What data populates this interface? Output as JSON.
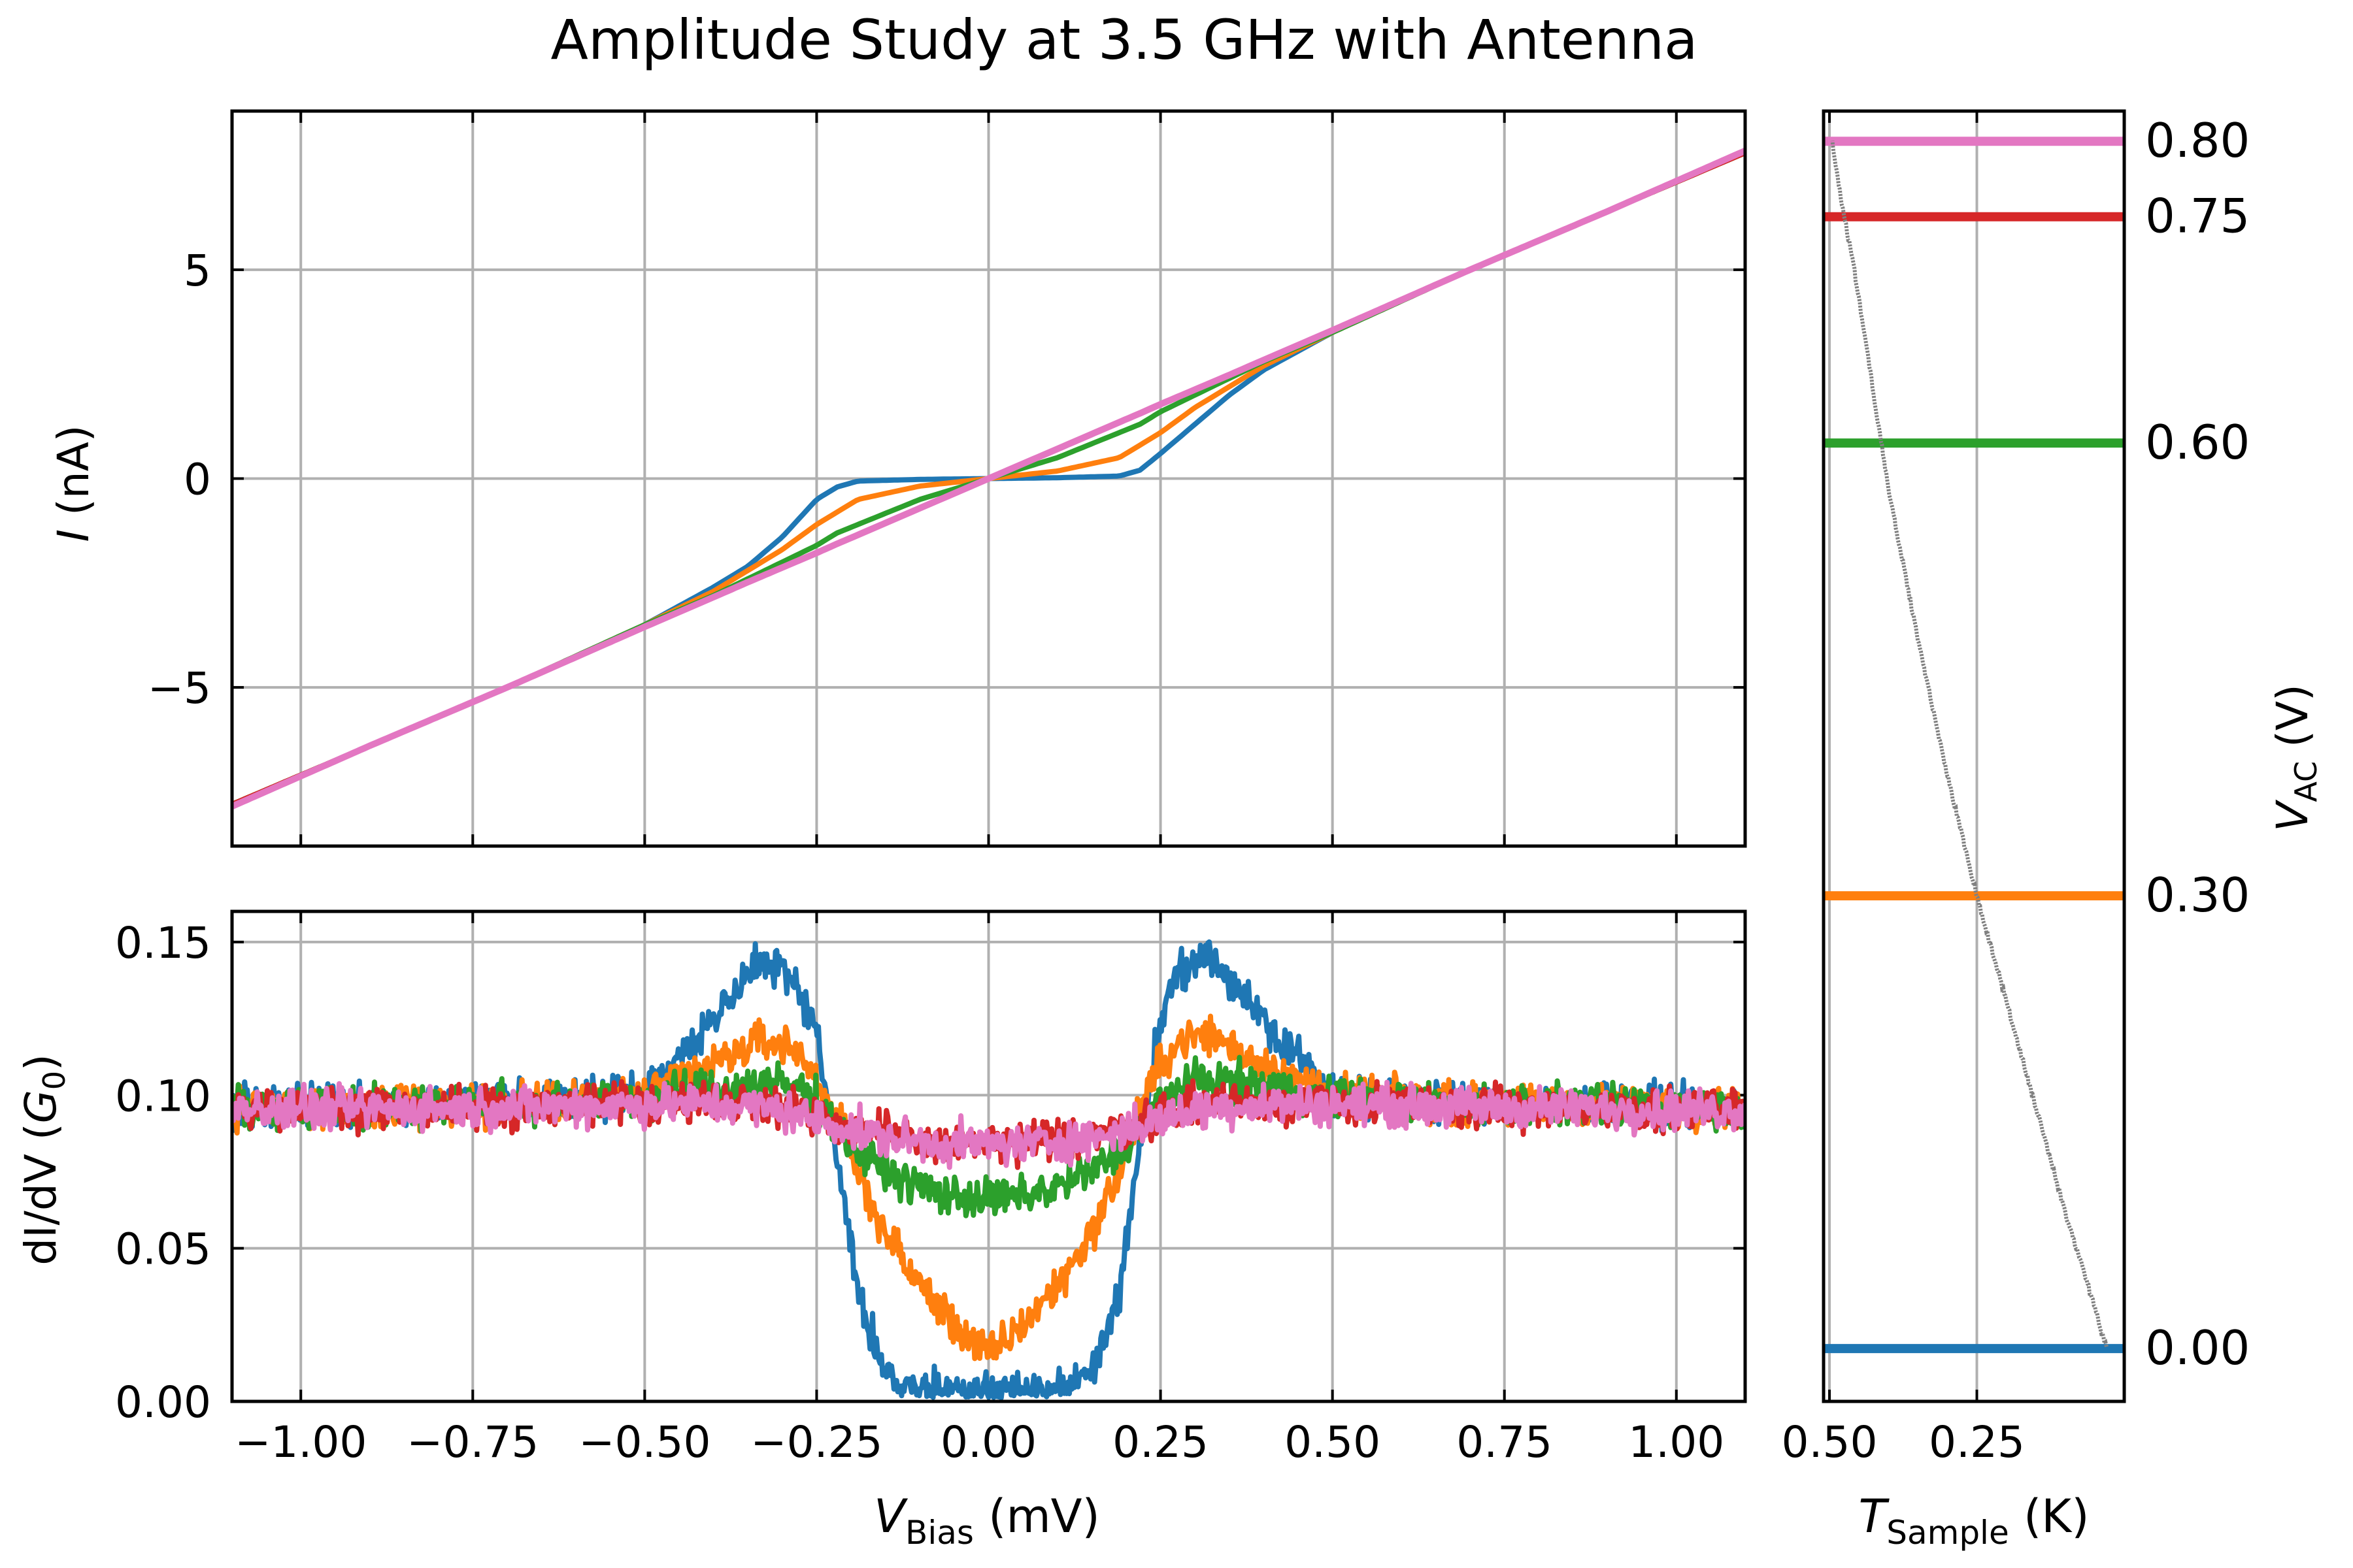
{
  "title": "Amplitude Study at 3.5 GHz with Antenna",
  "colors": {
    "series": [
      "#1f77b4",
      "#ff7f0e",
      "#2ca02c",
      "#d62728",
      "#e377c2"
    ],
    "grid": "#b0b0b0",
    "temperature": "#808080"
  },
  "chart_data": [
    {
      "id": "iv",
      "type": "line",
      "ylabel_symbol": "I",
      "ylabel_unit": "(nA)",
      "xlim": [
        -1.1,
        1.1
      ],
      "ylim": [
        -8.8,
        8.8
      ],
      "x_ticks": [
        -1.0,
        -0.75,
        -0.5,
        -0.25,
        0.0,
        0.25,
        0.5,
        0.75,
        1.0
      ],
      "y_ticks": [
        -5,
        0,
        5
      ],
      "y_tick_labels": [
        "−5",
        "0",
        "5"
      ],
      "grid": true,
      "normal_state_slope_nA_per_mV": 7.1,
      "gap_mV": 0.19,
      "series_amplitudes_V": [
        0.0,
        0.3,
        0.6,
        0.75,
        0.8
      ],
      "series_x": [
        -1.1,
        -0.9,
        -0.7,
        -0.5,
        -0.4,
        -0.35,
        -0.3,
        -0.25,
        -0.22,
        -0.19,
        -0.1,
        0.0,
        0.1,
        0.19,
        0.22,
        0.25,
        0.3,
        0.35,
        0.4,
        0.5,
        0.7,
        0.9,
        1.1
      ],
      "series": [
        {
          "y": [
            -7.8,
            -6.4,
            -5.0,
            -3.5,
            -2.6,
            -2.1,
            -1.4,
            -0.5,
            -0.2,
            -0.06,
            -0.02,
            0.0,
            0.02,
            0.06,
            0.2,
            0.6,
            1.3,
            2.0,
            2.6,
            3.5,
            5.0,
            6.4,
            7.8
          ]
        },
        {
          "y": [
            -7.8,
            -6.4,
            -5.0,
            -3.5,
            -2.7,
            -2.2,
            -1.7,
            -1.1,
            -0.8,
            -0.5,
            -0.18,
            0.0,
            0.18,
            0.5,
            0.8,
            1.1,
            1.7,
            2.2,
            2.7,
            3.5,
            5.0,
            6.4,
            7.8
          ]
        },
        {
          "y": [
            -7.8,
            -6.4,
            -5.0,
            -3.5,
            -2.8,
            -2.4,
            -2.0,
            -1.6,
            -1.3,
            -1.1,
            -0.5,
            0.0,
            0.5,
            1.1,
            1.3,
            1.6,
            2.0,
            2.4,
            2.8,
            3.5,
            5.0,
            6.4,
            7.8
          ]
        },
        {
          "y": [
            -7.8,
            -6.4,
            -5.0,
            -3.55,
            -2.84,
            -2.48,
            -2.13,
            -1.77,
            -1.56,
            -1.35,
            -0.71,
            0.0,
            0.71,
            1.35,
            1.56,
            1.77,
            2.13,
            2.48,
            2.84,
            3.55,
            5.0,
            6.4,
            7.8
          ]
        },
        {
          "y": [
            -7.85,
            -6.4,
            -5.0,
            -3.55,
            -2.84,
            -2.48,
            -2.13,
            -1.78,
            -1.56,
            -1.35,
            -0.71,
            0.0,
            0.71,
            1.35,
            1.56,
            1.78,
            2.13,
            2.48,
            2.84,
            3.55,
            5.0,
            6.4,
            7.85
          ]
        }
      ]
    },
    {
      "id": "didv",
      "type": "line",
      "xlabel_symbol": "V",
      "xlabel_sub": "Bias",
      "xlabel_unit": "(mV)",
      "ylabel_text": "dI/dV",
      "ylabel_unit_symbol": "G",
      "ylabel_unit_sub": "0",
      "xlim": [
        -1.1,
        1.1
      ],
      "ylim": [
        0.0,
        0.16
      ],
      "x_ticks": [
        -1.0,
        -0.75,
        -0.5,
        -0.25,
        0.0,
        0.25,
        0.5,
        0.75,
        1.0
      ],
      "x_tick_labels": [
        "−1.00",
        "−0.75",
        "−0.50",
        "−0.25",
        "0.00",
        "0.25",
        "0.50",
        "0.75",
        "1.00"
      ],
      "y_ticks": [
        0.0,
        0.05,
        0.1,
        0.15
      ],
      "y_tick_labels": [
        "0.00",
        "0.05",
        "0.10",
        "0.15"
      ],
      "grid": true,
      "noise_amplitude_G0": 0.004,
      "series_x": [
        -1.1,
        -0.7,
        -0.5,
        -0.4,
        -0.33,
        -0.28,
        -0.25,
        -0.22,
        -0.19,
        -0.15,
        -0.1,
        -0.05,
        0.0,
        0.05,
        0.1,
        0.15,
        0.19,
        0.22,
        0.25,
        0.28,
        0.32,
        0.4,
        0.5,
        0.7,
        1.1
      ],
      "series": [
        {
          "y": [
            0.096,
            0.098,
            0.1,
            0.125,
            0.145,
            0.138,
            0.12,
            0.08,
            0.035,
            0.008,
            0.004,
            0.003,
            0.003,
            0.003,
            0.004,
            0.008,
            0.035,
            0.085,
            0.125,
            0.14,
            0.146,
            0.125,
            0.1,
            0.098,
            0.096
          ]
        },
        {
          "y": [
            0.096,
            0.097,
            0.1,
            0.11,
            0.118,
            0.115,
            0.105,
            0.092,
            0.075,
            0.055,
            0.038,
            0.025,
            0.015,
            0.025,
            0.038,
            0.055,
            0.075,
            0.095,
            0.11,
            0.118,
            0.12,
            0.11,
            0.1,
            0.097,
            0.096
          ]
        },
        {
          "y": [
            0.096,
            0.097,
            0.099,
            0.102,
            0.104,
            0.103,
            0.098,
            0.09,
            0.082,
            0.075,
            0.07,
            0.067,
            0.066,
            0.067,
            0.07,
            0.075,
            0.082,
            0.09,
            0.098,
            0.103,
            0.105,
            0.103,
            0.099,
            0.097,
            0.096
          ]
        },
        {
          "y": [
            0.095,
            0.096,
            0.097,
            0.098,
            0.098,
            0.096,
            0.094,
            0.091,
            0.089,
            0.087,
            0.085,
            0.084,
            0.084,
            0.084,
            0.085,
            0.087,
            0.089,
            0.091,
            0.094,
            0.096,
            0.098,
            0.098,
            0.097,
            0.096,
            0.095
          ]
        },
        {
          "y": [
            0.095,
            0.096,
            0.097,
            0.097,
            0.096,
            0.094,
            0.092,
            0.09,
            0.088,
            0.086,
            0.085,
            0.084,
            0.084,
            0.084,
            0.085,
            0.086,
            0.088,
            0.09,
            0.092,
            0.094,
            0.096,
            0.097,
            0.097,
            0.096,
            0.095
          ]
        }
      ]
    },
    {
      "id": "temperature",
      "type": "line",
      "xlabel_symbol": "T",
      "xlabel_sub": "Sample",
      "xlabel_unit": "(K)",
      "ylabel_symbol": "V",
      "ylabel_sub": "AC",
      "ylabel_unit": "(V)",
      "xlim": [
        0.51,
        0.0
      ],
      "ylim": [
        -0.035,
        0.82
      ],
      "x_ticks": [
        0.5,
        0.25
      ],
      "x_tick_labels": [
        "0.50",
        "0.25"
      ],
      "x_grid_ticks": [
        0.5,
        0.25
      ],
      "y_ticks": [
        0.0,
        0.3,
        0.6,
        0.75,
        0.8
      ],
      "y_tick_labels": [
        "0.00",
        "0.30",
        "0.60",
        "0.75",
        "0.80"
      ],
      "amplitude_levels": [
        0.0,
        0.3,
        0.6,
        0.75,
        0.8
      ],
      "temperature_curve": {
        "T": [
          0.03,
          0.06,
          0.1,
          0.15,
          0.2,
          0.25,
          0.3,
          0.35,
          0.38,
          0.4,
          0.42,
          0.44,
          0.46,
          0.48,
          0.495
        ],
        "V": [
          0.0,
          0.04,
          0.09,
          0.16,
          0.23,
          0.3,
          0.38,
          0.47,
          0.53,
          0.57,
          0.62,
          0.67,
          0.72,
          0.76,
          0.8
        ]
      }
    }
  ]
}
